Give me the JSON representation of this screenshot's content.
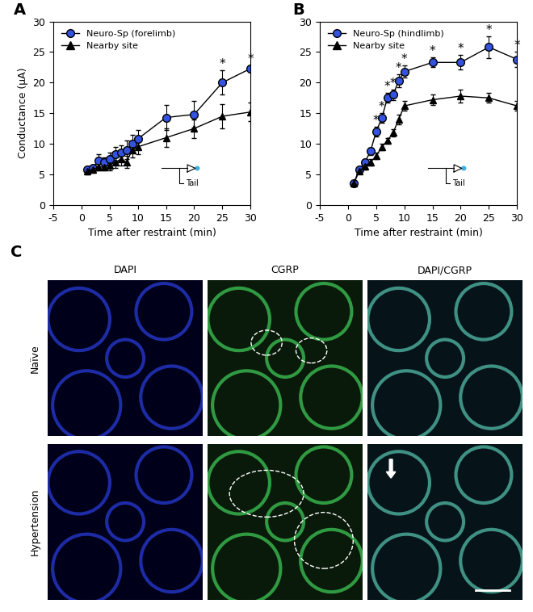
{
  "chart_data": [
    {
      "type": "line",
      "panel": "A",
      "x_label": "Time after restraint (min)",
      "y_label": "Conductance (μA)",
      "x": [
        1,
        2,
        3,
        4,
        5,
        6,
        7,
        8,
        9,
        10,
        15,
        20,
        25,
        30
      ],
      "series": [
        {
          "name": "Neuro-Sp (forelimb)",
          "color": "#3352e0",
          "marker": "circle",
          "values": [
            5.8,
            6.0,
            7.3,
            7.0,
            7.5,
            8.3,
            8.5,
            9.0,
            10.0,
            10.8,
            14.3,
            14.8,
            20.0,
            22.3
          ],
          "errors": [
            0.5,
            0.5,
            1.0,
            0.8,
            1.0,
            1.2,
            1.2,
            1.5,
            1.5,
            1.5,
            2.0,
            2.2,
            2.0,
            0.5
          ]
        },
        {
          "name": "Nearby site",
          "color": "#000000",
          "marker": "triangle",
          "values": [
            5.5,
            5.8,
            6.2,
            6.2,
            6.5,
            7.0,
            7.5,
            7.0,
            9.0,
            9.5,
            11.0,
            12.5,
            14.5,
            15.2
          ],
          "errors": [
            0.5,
            0.5,
            0.6,
            0.6,
            0.8,
            1.0,
            1.0,
            1.0,
            1.2,
            1.2,
            1.5,
            1.5,
            2.0,
            1.5
          ]
        }
      ],
      "significant_x": [
        25,
        30
      ],
      "significance_label": "*",
      "inset_label": "Tail",
      "xlim": [
        -5,
        30
      ],
      "xticks": [
        -5,
        0,
        5,
        10,
        15,
        20,
        25,
        30
      ],
      "ylim": [
        0,
        30
      ],
      "yticks": [
        0,
        5,
        10,
        15,
        20,
        25,
        30
      ],
      "legend": "upper left"
    },
    {
      "type": "line",
      "panel": "B",
      "x_label": "Time after restraint (min)",
      "x": [
        1,
        2,
        3,
        4,
        5,
        6,
        7,
        8,
        9,
        10,
        15,
        20,
        25,
        30
      ],
      "series": [
        {
          "name": "Neuro-Sp (hindlimb)",
          "color": "#3352e0",
          "marker": "circle",
          "values": [
            3.5,
            5.8,
            7.0,
            8.8,
            12.0,
            14.2,
            17.5,
            18.0,
            20.3,
            21.8,
            23.3,
            23.3,
            25.8,
            23.8
          ],
          "errors": [
            0.3,
            0.4,
            0.5,
            0.6,
            0.8,
            0.8,
            0.8,
            0.8,
            1.0,
            1.0,
            0.8,
            1.2,
            1.8,
            1.2
          ]
        },
        {
          "name": "Nearby site",
          "color": "#000000",
          "marker": "triangle",
          "values": [
            3.5,
            5.5,
            6.3,
            7.0,
            8.0,
            9.5,
            10.5,
            11.8,
            14.0,
            16.2,
            17.2,
            17.8,
            17.5,
            16.2
          ],
          "errors": [
            0.3,
            0.4,
            0.5,
            0.5,
            0.5,
            0.5,
            0.5,
            0.6,
            0.8,
            0.8,
            0.8,
            1.0,
            0.8,
            0.8
          ]
        }
      ],
      "significant_x": [
        5,
        6,
        7,
        8,
        9,
        10,
        15,
        20,
        25,
        30
      ],
      "significance_label": "*",
      "inset_label": "Tail",
      "xlim": [
        -5,
        30
      ],
      "xticks": [
        -5,
        0,
        5,
        10,
        15,
        20,
        25,
        30
      ],
      "ylim": [
        0,
        30
      ],
      "yticks": [
        0,
        5,
        10,
        15,
        20,
        25,
        30
      ],
      "legend": "upper left"
    }
  ],
  "image_grid": {
    "panel": "C",
    "columns": [
      "DAPI",
      "CGRP",
      "DAPI/CGRP"
    ],
    "rows": [
      "Naïve",
      "Hypertension"
    ]
  }
}
